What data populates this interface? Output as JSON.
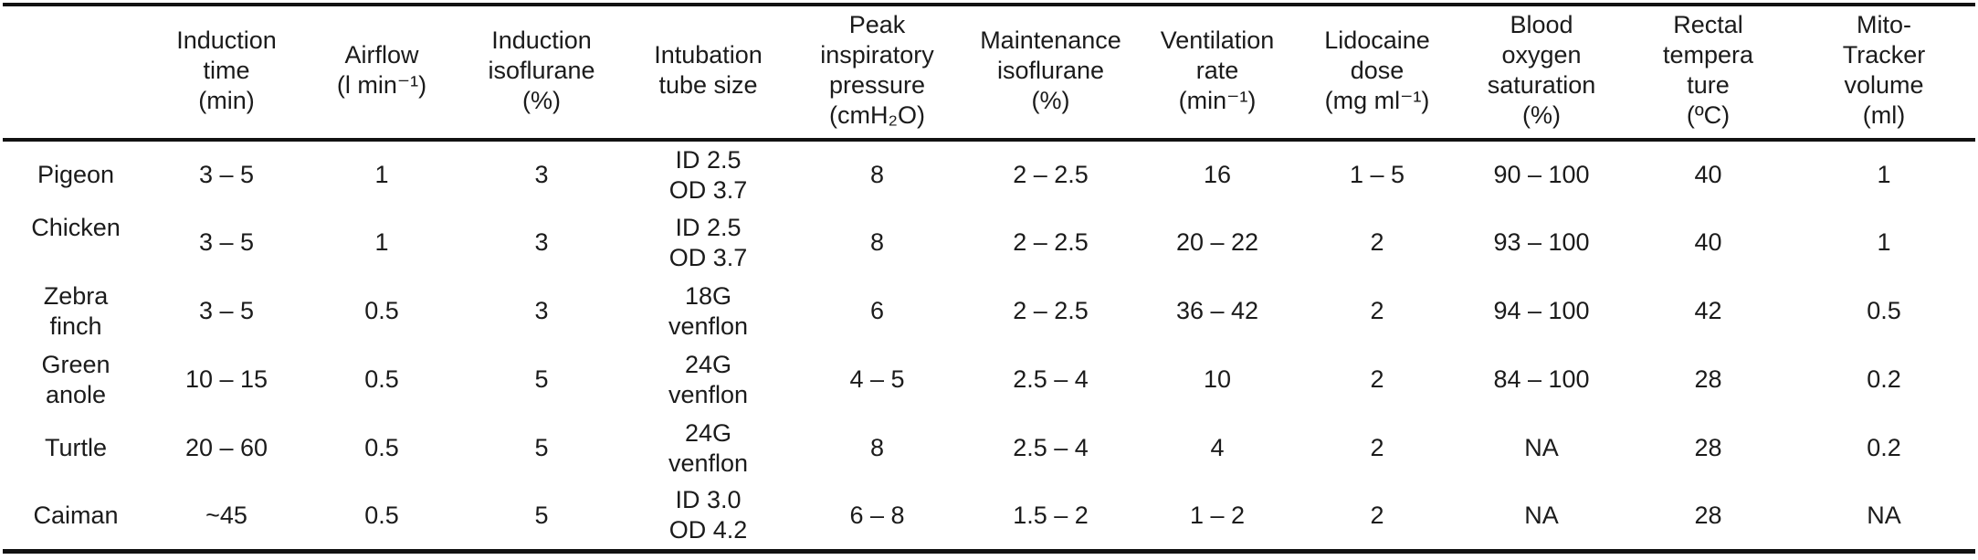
{
  "table": {
    "columns": [
      {
        "id": "species",
        "label": ""
      },
      {
        "id": "induction-time",
        "label": "Induction\ntime\n(min)"
      },
      {
        "id": "airflow",
        "label": "Airflow\n(l min⁻¹)"
      },
      {
        "id": "induction-isoflurane",
        "label": "Induction\nisoflurane\n(%)"
      },
      {
        "id": "intubation-tube-size",
        "label": "Intubation\ntube size"
      },
      {
        "id": "peak-inspiratory-pressure",
        "label": "Peak\ninspiratory\npressure\n(cmH₂O)"
      },
      {
        "id": "maintenance-isoflurane",
        "label": "Maintenance\nisoflurane\n(%)"
      },
      {
        "id": "ventilation-rate",
        "label": "Ventilation\nrate\n(min⁻¹)"
      },
      {
        "id": "lidocaine-dose",
        "label": "Lidocaine\ndose\n(mg ml⁻¹)"
      },
      {
        "id": "blood-oxygen-saturation",
        "label": "Blood\noxygen\nsaturation\n(%)"
      },
      {
        "id": "rectal-temperature",
        "label": "Rectal\ntempera\nture\n(ºC)"
      },
      {
        "id": "mitotracker-volume",
        "label": "Mito-\nTracker\nvolume\n(ml)"
      }
    ],
    "rows": [
      {
        "species": "Pigeon",
        "species_valign": "middle",
        "values": [
          "3 – 5",
          "1",
          "3",
          "ID 2.5\nOD 3.7",
          "8",
          "2 – 2.5",
          "16",
          "1 – 5",
          "90 – 100",
          "40",
          "1"
        ]
      },
      {
        "species": "Chicken",
        "species_valign": "top",
        "values": [
          "3 – 5",
          "1",
          "3",
          "ID 2.5\nOD 3.7",
          "8",
          "2 – 2.5",
          "20 – 22",
          "2",
          "93 – 100",
          "40",
          "1"
        ]
      },
      {
        "species": "Zebra\nfinch",
        "species_valign": "middle",
        "values": [
          "3 – 5",
          "0.5",
          "3",
          "18G\nvenflon",
          "6",
          "2 – 2.5",
          "36 – 42",
          "2",
          "94 – 100",
          "42",
          "0.5"
        ]
      },
      {
        "species": "Green\nanole",
        "species_valign": "middle",
        "values": [
          "10 – 15",
          "0.5",
          "5",
          "24G\nvenflon",
          "4 – 5",
          "2.5 – 4",
          "10",
          "2",
          "84 – 100",
          "28",
          "0.2"
        ]
      },
      {
        "species": "Turtle",
        "species_valign": "middle",
        "values": [
          "20 – 60",
          "0.5",
          "5",
          "24G\nvenflon",
          "8",
          "2.5 – 4",
          "4",
          "2",
          "NA",
          "28",
          "0.2"
        ]
      },
      {
        "species": "Caiman",
        "species_valign": "middle",
        "values": [
          "~45",
          "0.5",
          "5",
          "ID 3.0\nOD 4.2",
          "6 – 8",
          "1.5 – 2",
          "1 – 2",
          "2",
          "NA",
          "28",
          "NA"
        ]
      }
    ]
  },
  "colors": {
    "text": "#1b1b1b",
    "rule": "#121212",
    "background": "#ffffff"
  }
}
